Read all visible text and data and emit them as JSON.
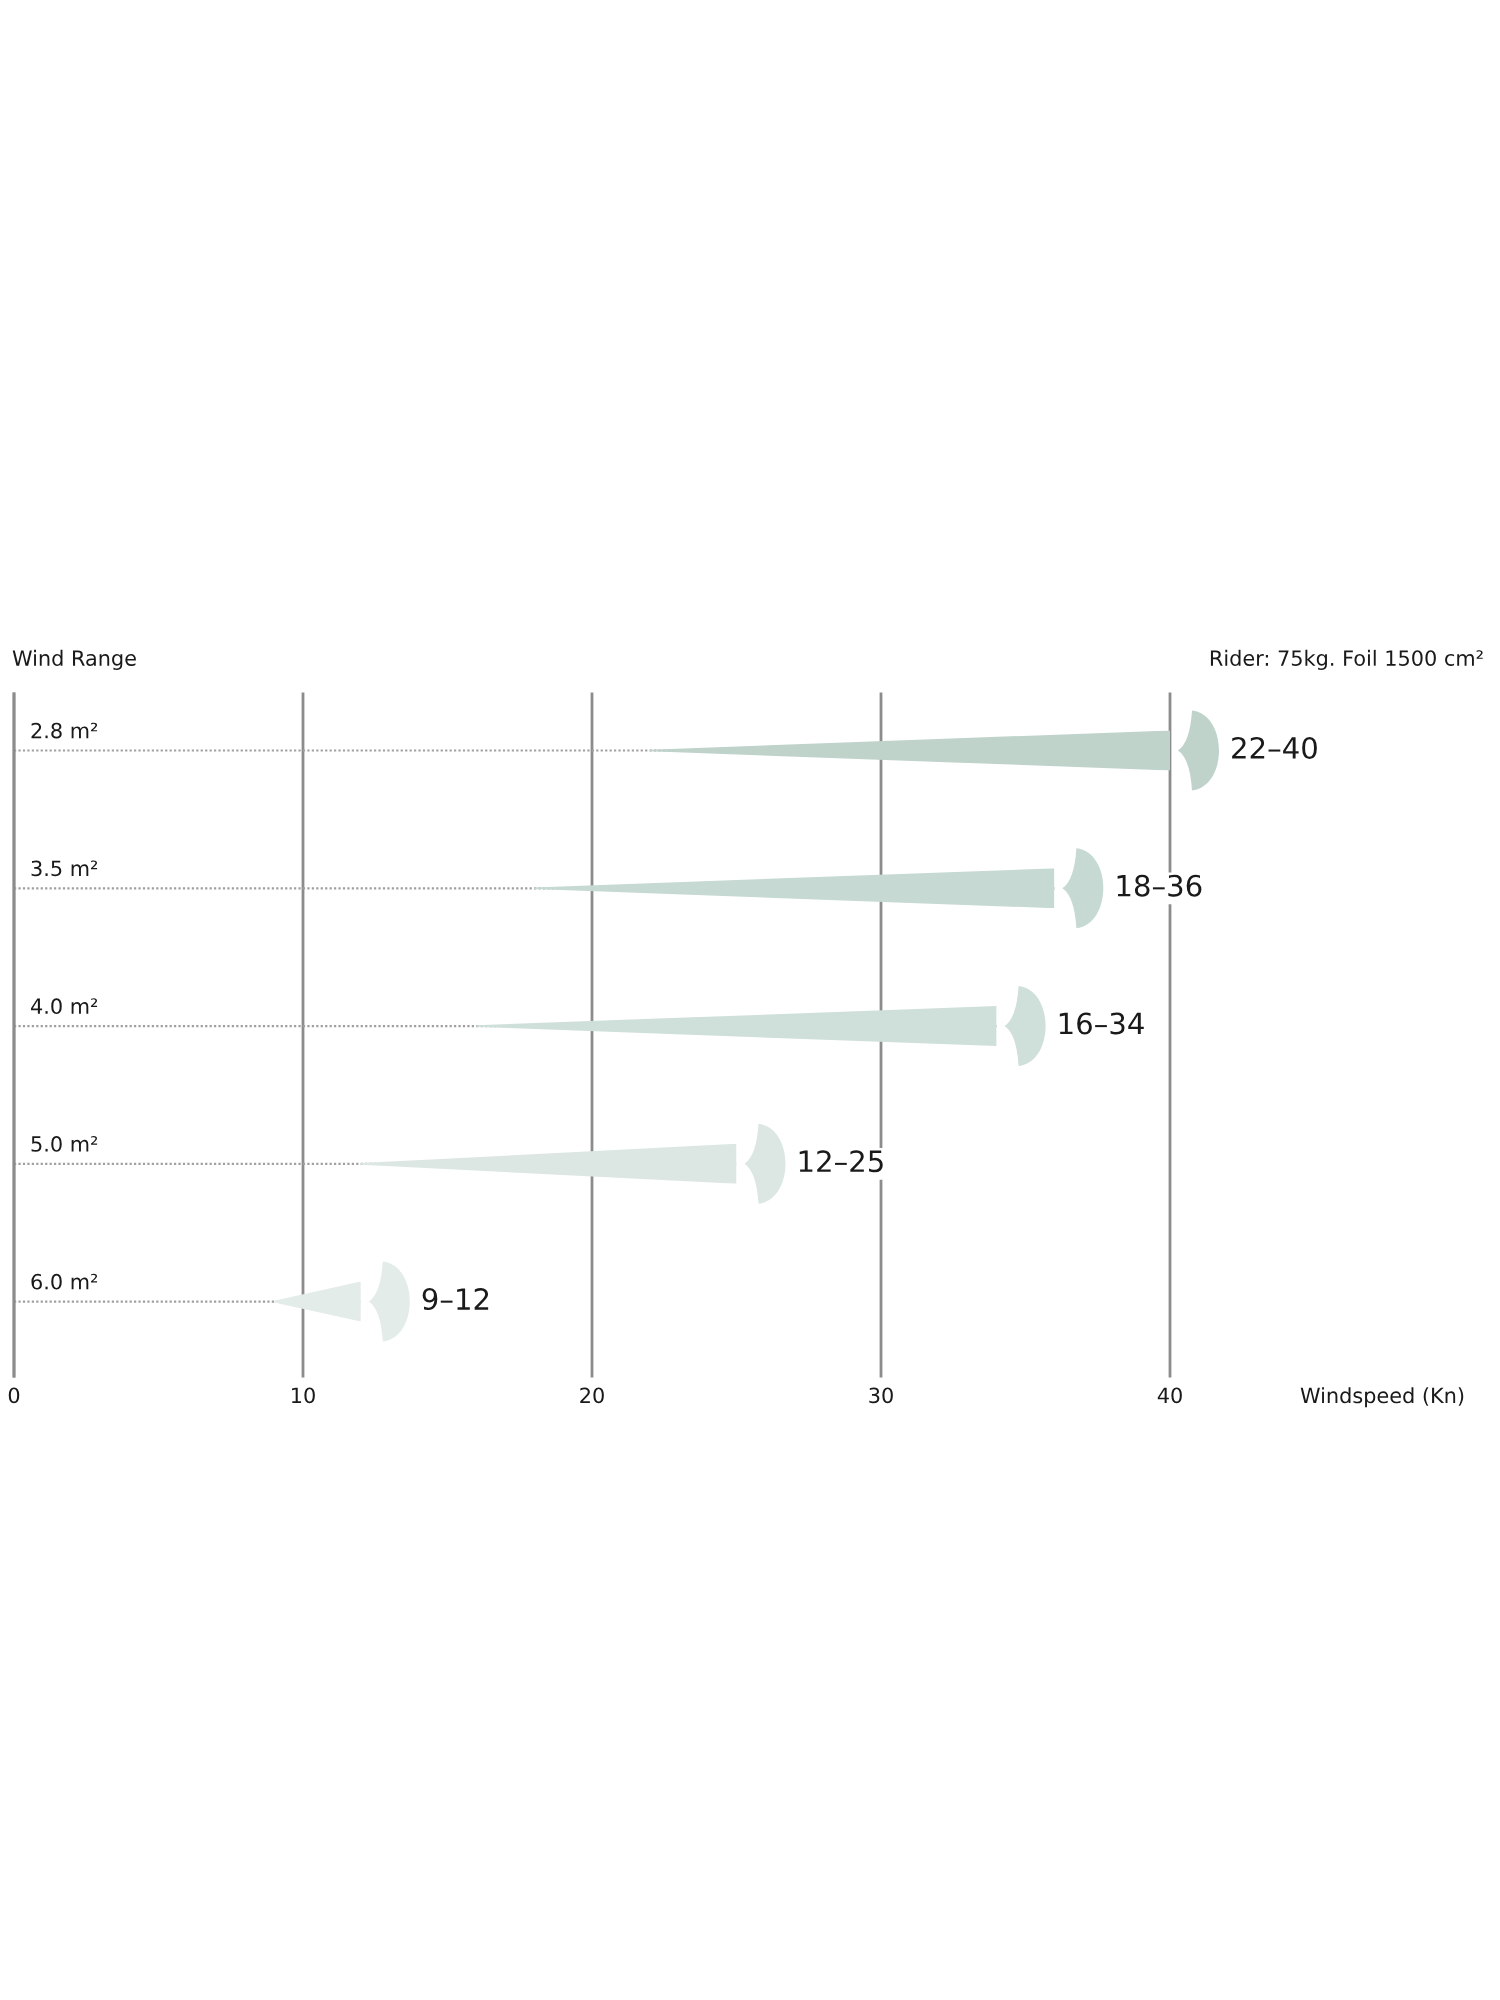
{
  "chart_data": {
    "type": "bar",
    "orientation": "horizontal",
    "ylabel": "Wind Range",
    "subtitle": "Rider: 75kg. Foil 1500 cm²",
    "annotations": [
      "Windspeed (Kn)"
    ],
    "categories": [
      "2.8 m²",
      "3.5 m²",
      "4.0 m²",
      "5.0 m²",
      "6.0 m²"
    ],
    "base": [
      22,
      18,
      16,
      12,
      9
    ],
    "values": [
      18,
      18,
      18,
      13,
      3
    ],
    "value_labels": [
      "22–40",
      "18–36",
      "16–34",
      "12–25",
      "9–12"
    ],
    "colors": [
      "#bfd3cb",
      "#c6d9d2",
      "#cfdfd9",
      "#dce7e3",
      "#e3ece8"
    ],
    "xlim": [
      0,
      40
    ],
    "xticks": [
      0,
      10,
      20,
      30,
      40
    ],
    "grid": true
  }
}
